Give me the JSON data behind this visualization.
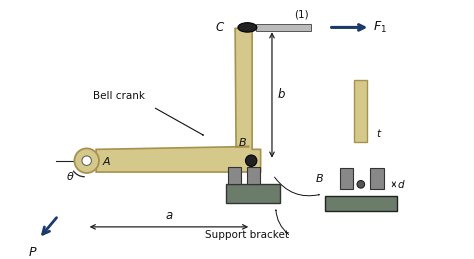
{
  "bg_color": "#ffffff",
  "crank_color": "#d4c98a",
  "crank_edge": "#a89050",
  "bracket_color": "#6b7c6b",
  "bracket_dark": "#4a5a4a",
  "pin_color": "#222222",
  "arrow_color": "#1a3a6b",
  "dim_color": "#222222",
  "label_color": "#111111",
  "rod_color": "#bbbbbb",
  "metal_color": "#888888"
}
